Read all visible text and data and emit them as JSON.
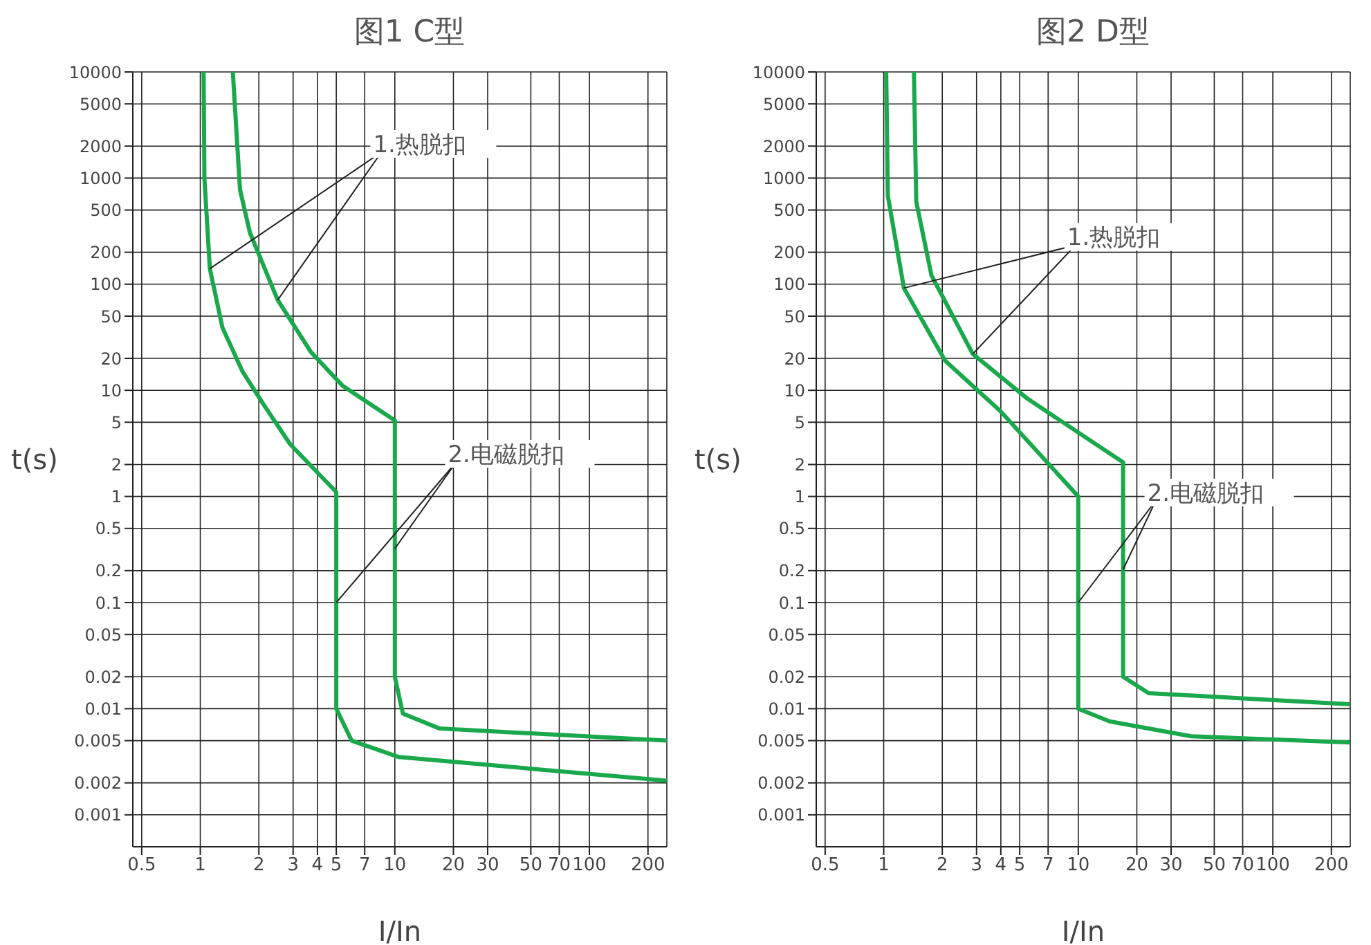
{
  "chart_data": [
    {
      "type": "line",
      "title": "图1 C型",
      "xlabel": "I/In",
      "ylabel": "t(s)",
      "log": "xy",
      "grid": true,
      "marker": "none",
      "line_style": "solid",
      "xlim": [
        0.45,
        250
      ],
      "xticks": [
        0.5,
        1,
        2,
        3,
        4,
        5,
        7,
        10,
        20,
        30,
        50,
        70,
        100,
        200
      ],
      "ylim": [
        0.0005,
        10000
      ],
      "yticks": [
        10000,
        5000,
        2000,
        1000,
        500,
        200,
        100,
        50,
        20,
        10,
        5,
        2,
        1,
        0.5,
        0.2,
        0.1,
        0.05,
        0.02,
        0.01,
        0.005,
        0.002,
        0.001
      ],
      "annotations": [
        {
          "text": "1.热脱扣",
          "x": 1.12,
          "y": 140
        },
        {
          "text": "2.电磁脱扣",
          "x": 5,
          "y": 0.1
        }
      ],
      "series": [
        {
          "color": "#1aa84c",
          "x": [
            1.04,
            1.05,
            1.12,
            1.3,
            1.65,
            2.1,
            2.9,
            5,
            5,
            6,
            10.5,
            250
          ],
          "values": [
            10000,
            1000,
            140,
            39,
            15,
            7.5,
            3.1,
            1.1,
            0.01,
            0.005,
            0.0035,
            0.0021
          ]
        },
        {
          "color": "#1aa84c",
          "x": [
            1.47,
            1.6,
            1.8,
            2.5,
            3.7,
            5.4,
            10,
            10,
            11,
            17,
            250
          ],
          "values": [
            10000,
            780,
            305,
            71,
            23,
            11,
            5.2,
            0.02,
            0.009,
            0.0065,
            0.005
          ]
        }
      ]
    },
    {
      "type": "line",
      "title": "图2 D型",
      "xlabel": "I/In",
      "ylabel": "t(s)",
      "log": "xy",
      "grid": true,
      "marker": "none",
      "line_style": "solid",
      "xlim": [
        0.45,
        250
      ],
      "xticks": [
        0.5,
        1,
        2,
        3,
        4,
        5,
        7,
        10,
        20,
        30,
        50,
        70,
        100,
        200
      ],
      "ylim": [
        0.0005,
        10000
      ],
      "yticks": [
        10000,
        5000,
        2000,
        1000,
        500,
        200,
        100,
        50,
        20,
        10,
        5,
        2,
        1,
        0.5,
        0.2,
        0.1,
        0.05,
        0.02,
        0.01,
        0.005,
        0.002,
        0.001
      ],
      "annotations": [
        {
          "text": "1.热脱扣",
          "x": 1.27,
          "y": 92
        },
        {
          "text": "2.电磁脱扣",
          "x": 10,
          "y": 0.1
        }
      ],
      "series": [
        {
          "color": "#1aa84c",
          "x": [
            1.03,
            1.05,
            1.27,
            2.07,
            3.97,
            10,
            10,
            14.5,
            38,
            250
          ],
          "values": [
            10000,
            680,
            92,
            19,
            6.4,
            1,
            0.01,
            0.0076,
            0.0055,
            0.0048
          ]
        },
        {
          "color": "#1aa84c",
          "x": [
            1.43,
            1.47,
            1.76,
            2.87,
            5.5,
            17,
            17,
            23,
            250
          ],
          "values": [
            10000,
            600,
            121,
            22,
            8.3,
            2.1,
            0.02,
            0.014,
            0.011
          ]
        }
      ]
    }
  ]
}
